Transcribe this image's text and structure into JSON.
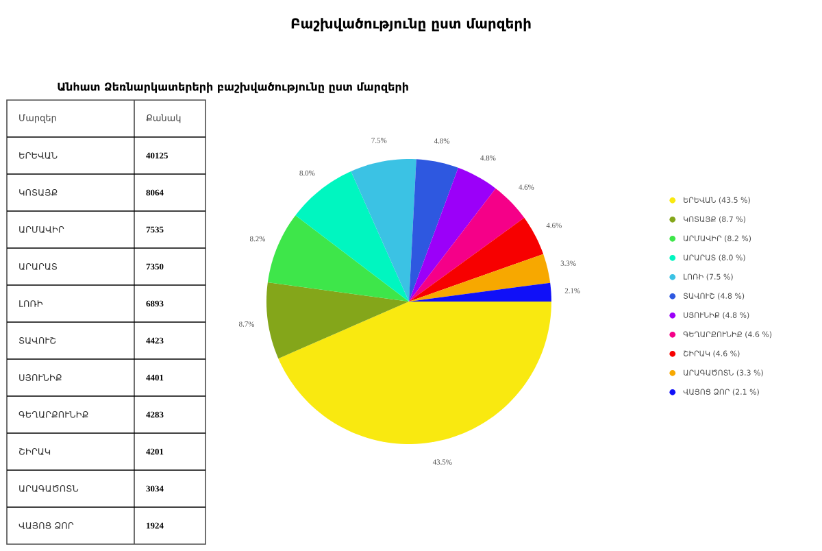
{
  "chart_data": [
    {
      "type": "other",
      "title": "Բաշխվածությունը ըստ մարզերի",
      "subtitle": "Անհատ Ձեռնարկատերերի բաշխվածությունը ըստ մարզերի",
      "xlabel": "Մարզեր",
      "ylabel": "Քանակ",
      "categories": [
        "ԵՐԵՎԱՆ",
        "ԿՈՏԱՅՔ",
        "ԱՐՄԱՎԻՐ",
        "ԱՐԱՐԱՏ",
        "ԼՈՌԻ",
        "ՏԱՎՈՒՇ",
        "ՍՅՈՒՆԻՔ",
        "ԳԵՂԱՐՔՈՒՆԻՔ",
        "ՇԻՐԱԿ",
        "ԱՐԱԳԱԾՈՏՆ",
        "ՎԱՅՈՑ ՁՈՐ"
      ],
      "values": [
        40125,
        8064,
        7535,
        7350,
        6893,
        4423,
        4401,
        4283,
        4201,
        3034,
        1924
      ],
      "data_labels": true
    },
    {
      "type": "pie",
      "legend": "right",
      "categories": [
        "ԵՐԵՎԱՆ (43.5 %)",
        "ԿՈՏԱՅՔ (8.7 %)",
        "ԱՐՄԱՎԻՐ (8.2 %)",
        "ԱՐԱՐԱՏ (8.0 %)",
        "ԼՈՌԻ (7.5 %)",
        "ՏԱՎՈՒՇ (4.8 %)",
        "ՍՅՈՒՆԻՔ (4.8 %)",
        "ԳԵՂԱՐՔՈՒՆԻՔ (4.6 %)",
        "ՇԻՐԱԿ (4.6 %)",
        "ԱՐԱԳԱԾՈՏՆ (3.3 %)",
        "ՎԱՅՈՑ ՁՈՐ (2.1 %)"
      ],
      "values": [
        43.5,
        8.7,
        8.2,
        8.0,
        7.5,
        4.8,
        4.8,
        4.6,
        4.6,
        3.3,
        2.1
      ],
      "value_labels": [
        "43.5%",
        "8.7%",
        "8.2%",
        "8.0%",
        "7.5%",
        "4.8%",
        "4.8%",
        "4.6%",
        "4.6%",
        "3.3%",
        "2.1%"
      ],
      "colors": [
        "#f9e910",
        "#84a61a",
        "#3ee64a",
        "#00f6c0",
        "#3bc2e4",
        "#2e58e0",
        "#9b00f9",
        "#f50088",
        "#f70000",
        "#f7a800",
        "#1010f8"
      ]
    }
  ]
}
